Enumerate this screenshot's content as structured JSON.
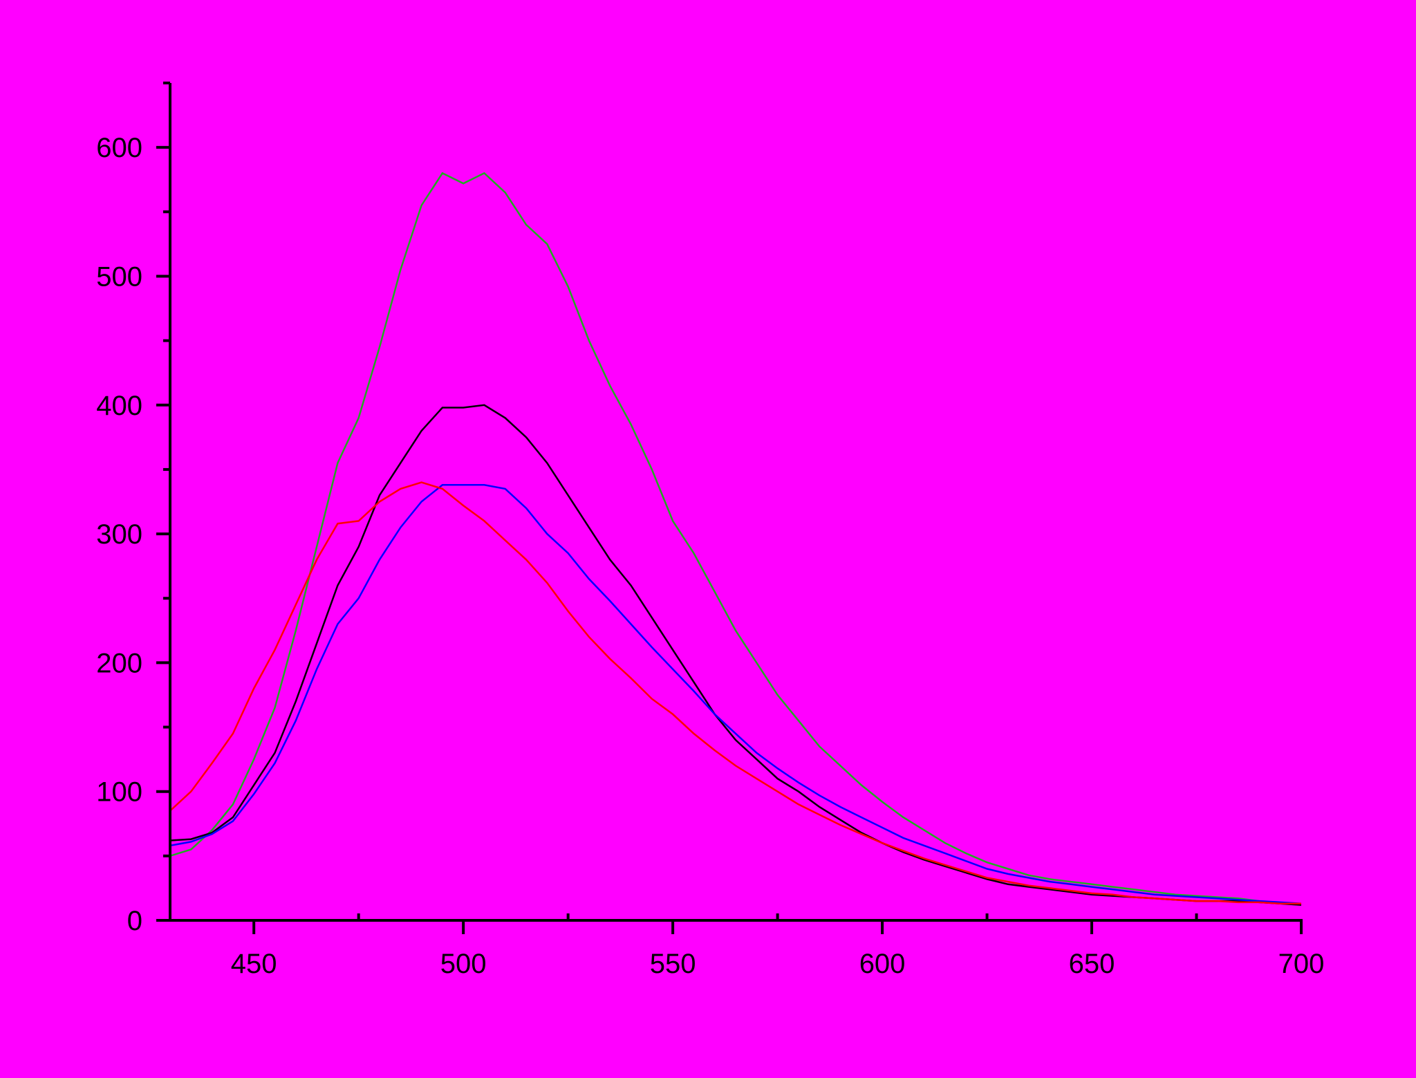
{
  "chart_data": {
    "type": "line",
    "x": [
      430,
      435,
      440,
      445,
      450,
      455,
      460,
      465,
      470,
      475,
      480,
      485,
      490,
      495,
      500,
      505,
      510,
      515,
      520,
      525,
      530,
      535,
      540,
      545,
      550,
      555,
      560,
      565,
      570,
      575,
      580,
      585,
      590,
      595,
      600,
      605,
      610,
      615,
      620,
      625,
      630,
      635,
      640,
      645,
      650,
      655,
      660,
      665,
      670,
      675,
      680,
      685,
      690,
      695,
      700
    ],
    "series": [
      {
        "color": "#22aa22",
        "values": [
          50,
          55,
          70,
          90,
          125,
          165,
          225,
          290,
          355,
          390,
          445,
          505,
          555,
          580,
          572,
          580,
          565,
          540,
          525,
          492,
          450,
          415,
          385,
          350,
          310,
          285,
          255,
          225,
          200,
          175,
          155,
          135,
          120,
          105,
          92,
          80,
          70,
          60,
          52,
          45,
          40,
          35,
          32,
          30,
          28,
          26,
          24,
          22,
          20,
          19,
          18,
          17,
          15,
          13,
          12
        ]
      },
      {
        "color": "#000000",
        "values": [
          62,
          63,
          68,
          80,
          105,
          130,
          170,
          215,
          260,
          290,
          330,
          355,
          380,
          398,
          398,
          400,
          390,
          375,
          355,
          330,
          305,
          280,
          260,
          235,
          210,
          185,
          160,
          140,
          125,
          110,
          100,
          88,
          78,
          68,
          60,
          53,
          47,
          42,
          37,
          32,
          28,
          26,
          24,
          22,
          20,
          19,
          18,
          17,
          16,
          15,
          15,
          15,
          14,
          13,
          12
        ]
      },
      {
        "color": "#0000ff",
        "values": [
          58,
          61,
          67,
          77,
          98,
          122,
          155,
          195,
          230,
          250,
          280,
          305,
          325,
          338,
          338,
          338,
          335,
          320,
          300,
          285,
          265,
          248,
          230,
          212,
          195,
          178,
          160,
          145,
          130,
          118,
          107,
          97,
          88,
          80,
          72,
          64,
          58,
          52,
          46,
          40,
          36,
          33,
          30,
          28,
          26,
          24,
          22,
          20,
          19,
          18,
          17,
          16,
          15,
          14,
          13
        ]
      },
      {
        "color": "#ff0000",
        "values": [
          85,
          100,
          122,
          145,
          180,
          210,
          245,
          280,
          308,
          310,
          325,
          335,
          340,
          335,
          322,
          310,
          295,
          280,
          262,
          240,
          220,
          203,
          188,
          172,
          160,
          145,
          132,
          120,
          110,
          100,
          90,
          82,
          74,
          67,
          60,
          54,
          48,
          43,
          38,
          33,
          30,
          27,
          25,
          23,
          21,
          20,
          18,
          17,
          16,
          15,
          15,
          14,
          14,
          13,
          13
        ]
      }
    ],
    "xlim": [
      430,
      700
    ],
    "xticks": [
      450,
      500,
      550,
      600,
      650,
      700
    ],
    "xticks_minor": [
      475,
      525,
      575,
      625,
      675
    ],
    "ylim": [
      0,
      650
    ],
    "yticks": [
      0,
      100,
      200,
      300,
      400,
      500,
      600
    ],
    "yticks_minor": [
      50,
      150,
      250,
      350,
      450,
      550,
      650
    ]
  }
}
